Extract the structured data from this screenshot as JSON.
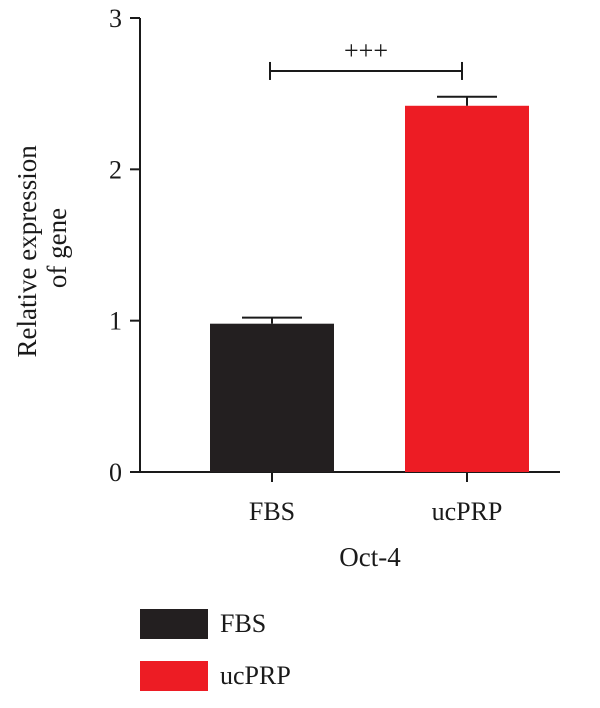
{
  "chart_data": {
    "type": "bar",
    "categories": [
      "FBS",
      "ucPRP"
    ],
    "values": [
      0.98,
      2.42
    ],
    "error": [
      0.04,
      0.06
    ],
    "colors": [
      "#231f20",
      "#ed1c24"
    ],
    "xlabel": "Oct-4",
    "ylabel_lines": [
      "Relative expression",
      "of gene"
    ],
    "ylim": [
      0,
      3
    ],
    "yticks": [
      "0",
      "1",
      "2",
      "3"
    ],
    "significance": {
      "label": "+++",
      "between": [
        "FBS",
        "ucPRP"
      ],
      "y": 2.65
    },
    "grid": false,
    "legend": {
      "position": "bottom-left",
      "entries": [
        {
          "label": "FBS",
          "color": "#231f20"
        },
        {
          "label": "ucPRP",
          "color": "#ed1c24"
        }
      ]
    }
  }
}
